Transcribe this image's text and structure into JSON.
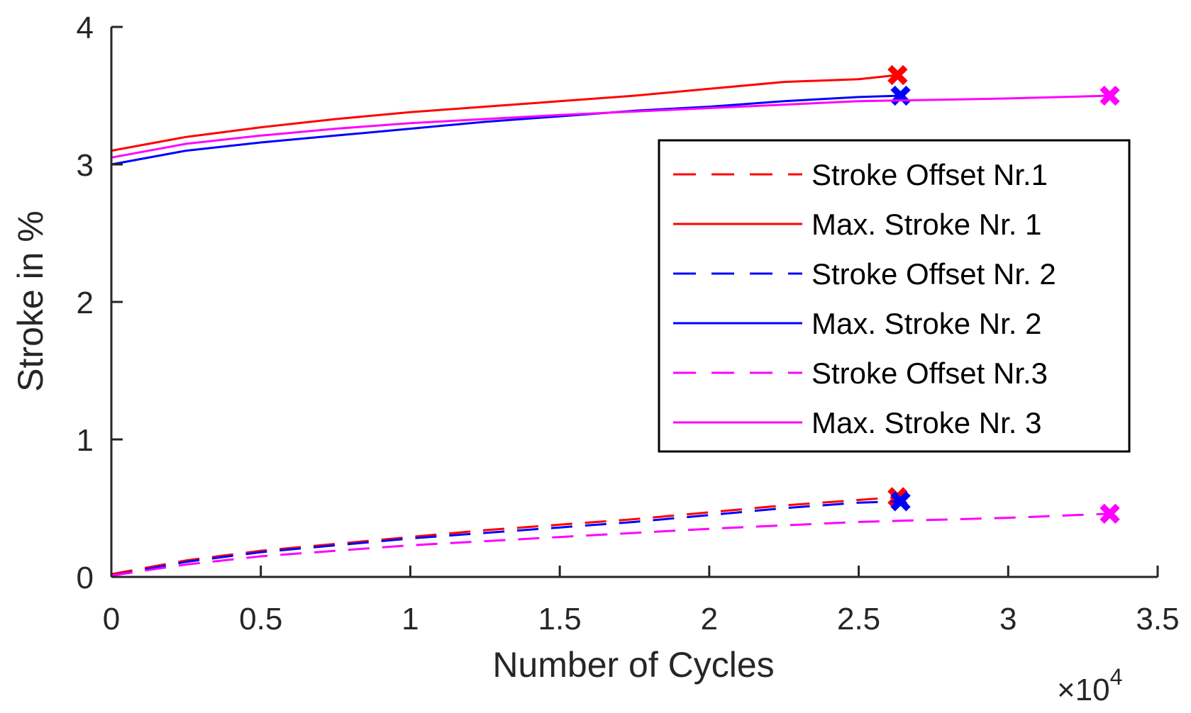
{
  "chart_data": {
    "type": "line",
    "xlabel": "Number of Cycles",
    "ylabel": "Stroke in %",
    "x_multiplier_label": {
      "base": "×10",
      "exp": "4"
    },
    "xlim": [
      0,
      3.5
    ],
    "ylim": [
      0,
      4
    ],
    "x_ticks": [
      "0",
      "0.5",
      "1",
      "1.5",
      "2",
      "2.5",
      "3",
      "3.5"
    ],
    "y_ticks": [
      "0",
      "1",
      "2",
      "3",
      "4"
    ],
    "grid": false,
    "legend_position": "right",
    "series": [
      {
        "name": "Stroke Offset Nr.1",
        "color": "#ff0000",
        "dash": "dashed",
        "x": [
          0,
          0.25,
          0.5,
          0.75,
          1.0,
          1.25,
          1.5,
          1.75,
          2.0,
          2.25,
          2.5,
          2.63
        ],
        "y": [
          0.02,
          0.12,
          0.19,
          0.24,
          0.29,
          0.34,
          0.38,
          0.42,
          0.47,
          0.52,
          0.56,
          0.58
        ],
        "end_marker": {
          "x": 2.63,
          "y": 0.58
        }
      },
      {
        "name": "Max. Stroke  Nr. 1",
        "color": "#ff0000",
        "dash": "solid",
        "x": [
          0,
          0.25,
          0.5,
          0.75,
          1.0,
          1.25,
          1.5,
          1.75,
          2.0,
          2.25,
          2.5,
          2.63
        ],
        "y": [
          3.1,
          3.2,
          3.27,
          3.33,
          3.38,
          3.42,
          3.46,
          3.5,
          3.55,
          3.6,
          3.62,
          3.65
        ],
        "end_marker": {
          "x": 2.63,
          "y": 3.65
        }
      },
      {
        "name": "Stroke Offset Nr. 2",
        "color": "#0000ff",
        "dash": "dashed",
        "x": [
          0,
          0.25,
          0.5,
          0.75,
          1.0,
          1.25,
          1.5,
          1.75,
          2.0,
          2.25,
          2.5,
          2.64
        ],
        "y": [
          0.01,
          0.11,
          0.18,
          0.23,
          0.28,
          0.32,
          0.36,
          0.4,
          0.45,
          0.5,
          0.54,
          0.55
        ],
        "end_marker": {
          "x": 2.64,
          "y": 0.55
        }
      },
      {
        "name": "Max. Stroke  Nr. 2",
        "color": "#0000ff",
        "dash": "solid",
        "x": [
          0,
          0.25,
          0.5,
          0.75,
          1.0,
          1.25,
          1.5,
          1.75,
          2.0,
          2.25,
          2.5,
          2.64
        ],
        "y": [
          3.0,
          3.1,
          3.16,
          3.21,
          3.26,
          3.31,
          3.35,
          3.39,
          3.42,
          3.46,
          3.49,
          3.5
        ],
        "end_marker": {
          "x": 2.64,
          "y": 3.5
        }
      },
      {
        "name": "Stroke Offset  Nr.3",
        "color": "#ff00ff",
        "dash": "dashed",
        "x": [
          0,
          0.25,
          0.5,
          0.75,
          1.0,
          1.5,
          2.0,
          2.5,
          3.0,
          3.34
        ],
        "y": [
          0.01,
          0.09,
          0.15,
          0.19,
          0.23,
          0.29,
          0.35,
          0.4,
          0.43,
          0.46
        ],
        "end_marker": {
          "x": 3.34,
          "y": 0.46
        }
      },
      {
        "name": "Max. Stroke  Nr. 3",
        "color": "#ff00ff",
        "dash": "solid",
        "x": [
          0,
          0.25,
          0.5,
          0.75,
          1.0,
          1.5,
          2.0,
          2.5,
          3.0,
          3.34
        ],
        "y": [
          3.05,
          3.15,
          3.21,
          3.26,
          3.3,
          3.36,
          3.41,
          3.46,
          3.48,
          3.5
        ],
        "end_marker": {
          "x": 3.34,
          "y": 3.5
        }
      }
    ]
  }
}
